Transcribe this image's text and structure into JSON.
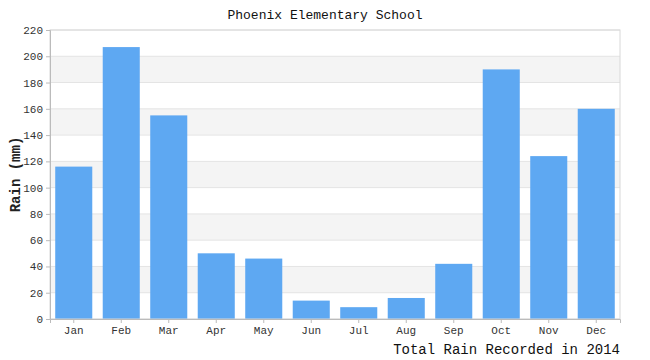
{
  "chart_data": {
    "type": "bar",
    "title": "Phoenix Elementary School",
    "y_label": "Rain (mm)",
    "x_label": "Total Rain Recorded in 2014",
    "categories": [
      "Jan",
      "Feb",
      "Mar",
      "Apr",
      "May",
      "Jun",
      "Jul",
      "Aug",
      "Sep",
      "Oct",
      "Nov",
      "Dec"
    ],
    "values": [
      116,
      207,
      155,
      50,
      46,
      14,
      9,
      16,
      42,
      190,
      124,
      160
    ],
    "color": "#5ea8f2",
    "ylim": [
      0,
      220
    ],
    "yticks": [
      0,
      20,
      40,
      60,
      80,
      100,
      120,
      140,
      160,
      180,
      200,
      220
    ],
    "grid": true
  }
}
